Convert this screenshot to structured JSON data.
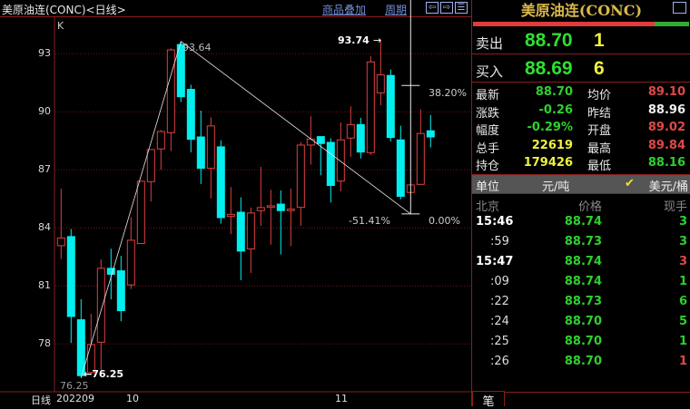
{
  "header": {
    "title": "美原油连(CONC)<日线>",
    "overlay_link": "商品叠加",
    "period_link": "周期",
    "nav_prev_icon": "arrow-left-icon",
    "nav_next_icon": "arrow-right-icon",
    "layout_icon": "split-panel-icon"
  },
  "chart": {
    "indicator_label": "K",
    "period_label": "日线",
    "y_ticks": [
      "93",
      "90",
      "87",
      "84",
      "81",
      "78"
    ],
    "x_labels": [
      "202209",
      "10",
      "11"
    ],
    "colors": {
      "up": "#e04040",
      "down": "#00f0f0",
      "grid": "#7a1010",
      "annot": "#e8e8e8"
    },
    "annotations": {
      "high_label": "93.64",
      "max_label": "93.74",
      "max_arrow": "→",
      "low_label": "76.25",
      "low_label_arrow": "←76.25",
      "fib_top": "38.20%",
      "fib_zero": "0.00%",
      "fib_ext": "-51.41%"
    }
  },
  "chart_data": {
    "type": "candlestick",
    "ylim": [
      75.6,
      96.6
    ],
    "y_ticks": [
      93,
      90,
      87,
      84,
      81,
      78
    ],
    "x_labels": [
      "202209",
      "10",
      "11"
    ],
    "ohlc": [
      [
        83.08,
        86.02,
        82.39,
        83.48
      ],
      [
        83.55,
        83.94,
        78.05,
        79.42
      ],
      [
        79.25,
        80.31,
        76.25,
        76.36
      ],
      [
        76.52,
        79.56,
        76.4,
        77.97
      ],
      [
        78.09,
        82.38,
        76.5,
        81.91
      ],
      [
        81.91,
        82.92,
        80.3,
        81.6
      ],
      [
        81.78,
        82.55,
        79.17,
        79.72
      ],
      [
        81.05,
        84.56,
        80.84,
        83.36
      ],
      [
        83.19,
        86.41,
        83.19,
        86.41
      ],
      [
        86.39,
        88.05,
        85.36,
        88.05
      ],
      [
        88.08,
        89.06,
        87.0,
        88.98
      ],
      [
        88.92,
        93.28,
        87.97,
        93.2
      ],
      [
        93.48,
        93.64,
        90.5,
        90.78
      ],
      [
        91.16,
        91.4,
        87.9,
        88.58
      ],
      [
        88.7,
        90.06,
        86.27,
        87.08
      ],
      [
        87.08,
        89.72,
        85.52,
        89.27
      ],
      [
        88.19,
        88.53,
        84.22,
        84.53
      ],
      [
        84.59,
        86.11,
        83.67,
        84.7
      ],
      [
        84.81,
        85.58,
        81.3,
        82.8
      ],
      [
        82.91,
        85.05,
        81.67,
        84.77
      ],
      [
        84.89,
        87.16,
        84.11,
        85.05
      ],
      [
        85.06,
        85.97,
        83.13,
        85.14
      ],
      [
        85.23,
        85.94,
        82.63,
        84.89
      ],
      [
        84.89,
        86.03,
        83.05,
        84.97
      ],
      [
        85.06,
        88.44,
        84.11,
        88.28
      ],
      [
        88.28,
        89.77,
        87.27,
        88.59
      ],
      [
        88.72,
        88.72,
        86.72,
        88.36
      ],
      [
        88.42,
        88.63,
        85.31,
        86.19
      ],
      [
        86.42,
        89.45,
        85.89,
        88.55
      ],
      [
        88.64,
        90.28,
        87.66,
        89.34
      ],
      [
        89.34,
        89.69,
        87.59,
        87.92
      ],
      [
        87.89,
        92.89,
        87.77,
        92.58
      ],
      [
        90.98,
        93.74,
        90.34,
        91.91
      ],
      [
        91.88,
        92.19,
        88.47,
        88.67
      ],
      [
        88.55,
        89.28,
        85.47,
        85.63
      ],
      [
        85.83,
        86.3,
        85.8,
        86.22
      ],
      [
        86.25,
        90.13,
        86.22,
        88.88
      ],
      [
        89.02,
        89.84,
        88.16,
        88.7
      ]
    ],
    "trendline": {
      "low_index": 2,
      "low": 76.25,
      "high_index": 12,
      "high": 93.64,
      "end_index": 35,
      "end": 84.72
    },
    "fib": {
      "index": 35,
      "top": 96.6,
      "level_38_2": 91.36,
      "level_0": 84.72
    },
    "max_index": 32,
    "max": 93.74
  },
  "quote": {
    "title": "美原油连(CONC)",
    "maximize_icon": "window-icon",
    "red_ratio": 0.84,
    "sell": {
      "label": "卖出",
      "price": "88.70",
      "vol": "1"
    },
    "buy": {
      "label": "买入",
      "price": "88.69",
      "vol": "6"
    },
    "stats": [
      {
        "l": "最新",
        "v": "88.70",
        "c": "#2ed02e",
        "l2": "均价",
        "v2": "89.10",
        "c2": "#e04848"
      },
      {
        "l": "涨跌",
        "v": "-0.26",
        "c": "#2ed02e",
        "l2": "昨结",
        "v2": "88.96",
        "c2": "#f0f0f0"
      },
      {
        "l": "幅度",
        "v": "-0.29%",
        "c": "#2ed02e",
        "l2": "开盘",
        "v2": "89.02",
        "c2": "#e04848"
      },
      {
        "l": "总手",
        "v": "22619",
        "c": "#f0f040",
        "l2": "最高",
        "v2": "89.84",
        "c2": "#e04848"
      },
      {
        "l": "持仓",
        "v": "179426",
        "c": "#f0f040",
        "l2": "最低",
        "v2": "88.16",
        "c2": "#2ed02e"
      }
    ],
    "unit": {
      "label": "单位",
      "opt1": "元/吨",
      "check": "✔",
      "opt2": "美元/桶"
    },
    "ticks_header": {
      "time": "北京",
      "price": "价格",
      "vol": "现手"
    },
    "ticks": [
      {
        "t": "15:46",
        "p": "88.74",
        "v": "3",
        "vc": "#2ed02e"
      },
      {
        "t": ":59",
        "p": "88.73",
        "v": "3",
        "vc": "#2ed02e"
      },
      {
        "t": "15:47",
        "p": "88.74",
        "v": "3",
        "vc": "#e04848"
      },
      {
        "t": ":09",
        "p": "88.74",
        "v": "1",
        "vc": "#2ed02e"
      },
      {
        "t": ":22",
        "p": "88.73",
        "v": "6",
        "vc": "#2ed02e"
      },
      {
        "t": ":24",
        "p": "88.70",
        "v": "5",
        "vc": "#2ed02e"
      },
      {
        "t": ":25",
        "p": "88.70",
        "v": "1",
        "vc": "#2ed02e"
      },
      {
        "t": ":26",
        "p": "88.70",
        "v": "1",
        "vc": "#e04848"
      }
    ],
    "tab": "笔"
  }
}
